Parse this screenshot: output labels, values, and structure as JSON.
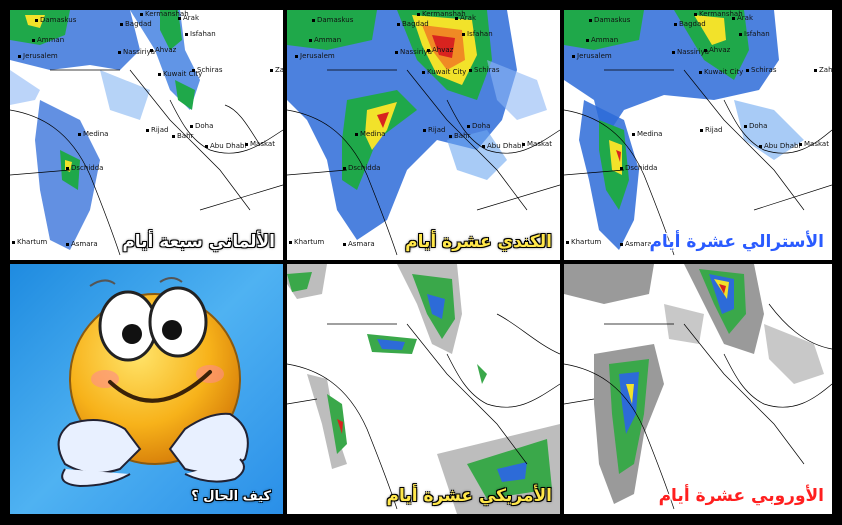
{
  "panels": [
    {
      "id": "german",
      "caption": "الألماني سبعة أيام",
      "style": "white"
    },
    {
      "id": "canadian",
      "caption": "الكندي عشرة أيام",
      "style": "yellow"
    },
    {
      "id": "australian",
      "caption": "الأسترالي عشرة أيام",
      "style": "blue"
    },
    {
      "id": "emoji",
      "caption": "كيف الحال ؟",
      "style": "white"
    },
    {
      "id": "american",
      "caption": "الأمريكي عشرة أيام",
      "style": "yellow"
    },
    {
      "id": "european",
      "caption": "الأوروبي عشرة أيام",
      "style": "red"
    }
  ],
  "cities": {
    "damascus": "Damaskus",
    "baghdad": "Bagdad",
    "kermanshah": "Kermanshah",
    "arak": "Arak",
    "isfahan": "Isfahan",
    "amman": "Amman",
    "jerusalem": "Jerusalem",
    "nasiriya": "Nassiriya",
    "ahvaz": "Ahvaz",
    "kuwait": "Kuwait City",
    "shiraz": "Schiras",
    "zahedan": "Zahe",
    "medina": "Medina",
    "riyadh": "Rijad",
    "doha": "Doha",
    "bahrain": "Bahr",
    "abudhabi": "Abu Dhabi",
    "muscat": "Maskat",
    "jeddah": "Dschidda",
    "asmara": "Asmara",
    "khartoum": "Khartum"
  }
}
